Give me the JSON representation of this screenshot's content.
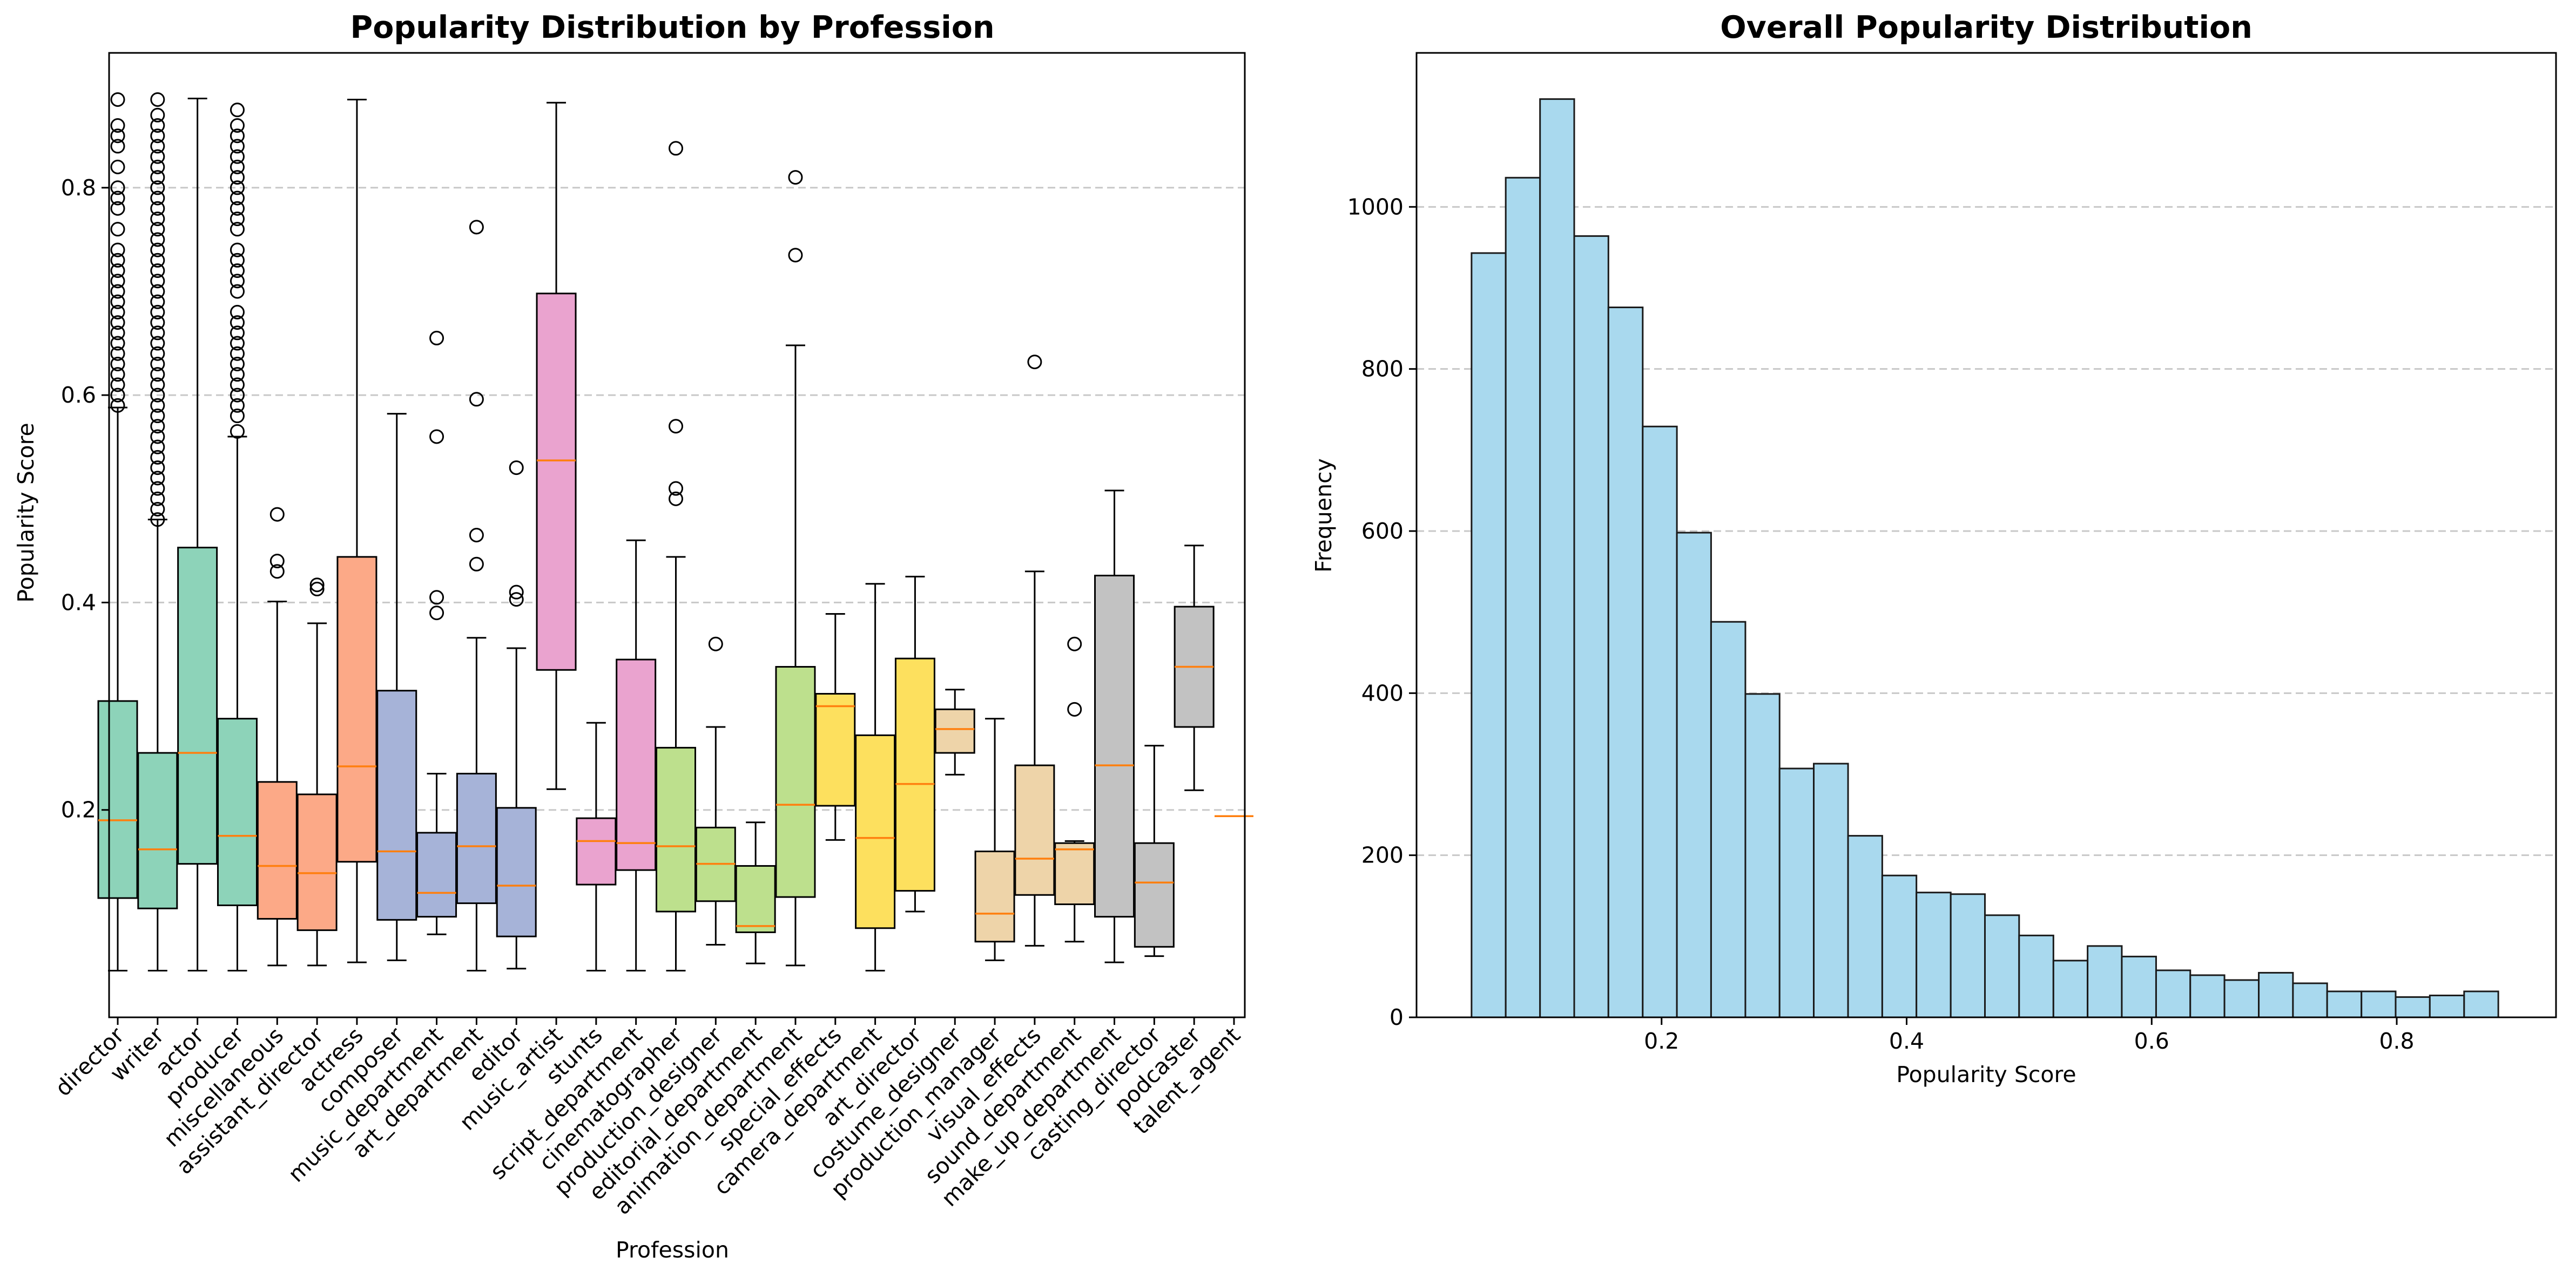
{
  "chart_data": [
    {
      "type": "box",
      "title": "Popularity Distribution by Profession",
      "xlabel": "Profession",
      "ylabel": "Popularity Score",
      "ylim": [
        0.0,
        0.93
      ],
      "yticks": [
        0.2,
        0.4,
        0.6,
        0.8
      ],
      "grid": "y-dashed",
      "palette_note": "Set2-like pastel colors cycling per profession",
      "categories": [
        "director",
        "writer",
        "actor",
        "producer",
        "miscellaneous",
        "assistant_director",
        "actress",
        "composer",
        "music_department",
        "art_department",
        "editor",
        "music_artist",
        "stunts",
        "script_department",
        "cinematographer",
        "production_designer",
        "editorial_department",
        "animation_department",
        "special_effects",
        "camera_department",
        "art_director",
        "costume_designer",
        "production_manager",
        "visual_effects",
        "sound_department",
        "make_up_department",
        "casting_director",
        "podcaster",
        "talent_agent"
      ],
      "boxes": [
        {
          "name": "director",
          "whislo": 0.045,
          "q1": 0.115,
          "med": 0.19,
          "q3": 0.305,
          "whishi": 0.588,
          "fliers": [
            0.59,
            0.6,
            0.61,
            0.62,
            0.63,
            0.64,
            0.65,
            0.66,
            0.67,
            0.68,
            0.69,
            0.7,
            0.71,
            0.72,
            0.73,
            0.74,
            0.76,
            0.78,
            0.79,
            0.8,
            0.82,
            0.84,
            0.85,
            0.86,
            0.885
          ],
          "color": "#8dd3b9"
        },
        {
          "name": "writer",
          "whislo": 0.045,
          "q1": 0.105,
          "med": 0.162,
          "q3": 0.255,
          "whishi": 0.48,
          "fliers": [
            0.48,
            0.49,
            0.5,
            0.51,
            0.52,
            0.53,
            0.54,
            0.55,
            0.56,
            0.57,
            0.58,
            0.59,
            0.6,
            0.61,
            0.62,
            0.63,
            0.64,
            0.65,
            0.66,
            0.67,
            0.68,
            0.69,
            0.7,
            0.71,
            0.72,
            0.73,
            0.74,
            0.75,
            0.76,
            0.77,
            0.78,
            0.79,
            0.8,
            0.81,
            0.82,
            0.83,
            0.84,
            0.85,
            0.86,
            0.87,
            0.885
          ],
          "color": "#8dd3b9"
        },
        {
          "name": "actor",
          "whislo": 0.045,
          "q1": 0.148,
          "med": 0.255,
          "q3": 0.453,
          "whishi": 0.886,
          "fliers": [],
          "color": "#8dd3b9"
        },
        {
          "name": "producer",
          "whislo": 0.045,
          "q1": 0.108,
          "med": 0.175,
          "q3": 0.288,
          "whishi": 0.56,
          "fliers": [
            0.565,
            0.58,
            0.59,
            0.6,
            0.61,
            0.62,
            0.63,
            0.64,
            0.65,
            0.66,
            0.67,
            0.68,
            0.7,
            0.71,
            0.72,
            0.73,
            0.74,
            0.76,
            0.77,
            0.78,
            0.79,
            0.8,
            0.81,
            0.82,
            0.83,
            0.84,
            0.85,
            0.86,
            0.875
          ],
          "color": "#8dd3b9"
        },
        {
          "name": "miscellaneous",
          "whislo": 0.05,
          "q1": 0.095,
          "med": 0.146,
          "q3": 0.227,
          "whishi": 0.401,
          "fliers": [
            0.43,
            0.44,
            0.485
          ],
          "color": "#fca987"
        },
        {
          "name": "assistant_director",
          "whislo": 0.05,
          "q1": 0.084,
          "med": 0.139,
          "q3": 0.215,
          "whishi": 0.38,
          "fliers": [
            0.413,
            0.417
          ],
          "color": "#fca987"
        },
        {
          "name": "actress",
          "whislo": 0.053,
          "q1": 0.15,
          "med": 0.242,
          "q3": 0.444,
          "whishi": 0.885,
          "fliers": [],
          "color": "#fca987"
        },
        {
          "name": "composer",
          "whislo": 0.055,
          "q1": 0.094,
          "med": 0.16,
          "q3": 0.315,
          "whishi": 0.582,
          "fliers": [],
          "color": "#a6b3d8"
        },
        {
          "name": "music_department",
          "whislo": 0.08,
          "q1": 0.097,
          "med": 0.12,
          "q3": 0.178,
          "whishi": 0.235,
          "fliers": [
            0.39,
            0.405,
            0.56,
            0.655
          ],
          "color": "#a6b3d8"
        },
        {
          "name": "art_department",
          "whislo": 0.045,
          "q1": 0.11,
          "med": 0.165,
          "q3": 0.235,
          "whishi": 0.366,
          "fliers": [
            0.437,
            0.465,
            0.596,
            0.762
          ],
          "color": "#a6b3d8"
        },
        {
          "name": "editor",
          "whislo": 0.047,
          "q1": 0.078,
          "med": 0.127,
          "q3": 0.202,
          "whishi": 0.356,
          "fliers": [
            0.403,
            0.41,
            0.53
          ],
          "color": "#a6b3d8"
        },
        {
          "name": "music_artist",
          "whislo": 0.22,
          "q1": 0.335,
          "med": 0.537,
          "q3": 0.698,
          "whishi": 0.882,
          "fliers": [],
          "color": "#eaa3cf"
        },
        {
          "name": "stunts",
          "whislo": 0.045,
          "q1": 0.128,
          "med": 0.17,
          "q3": 0.192,
          "whishi": 0.284,
          "fliers": [],
          "color": "#eaa3cf"
        },
        {
          "name": "script_department",
          "whislo": 0.045,
          "q1": 0.142,
          "med": 0.168,
          "q3": 0.345,
          "whishi": 0.46,
          "fliers": [],
          "color": "#eaa3cf"
        },
        {
          "name": "cinematographer",
          "whislo": 0.045,
          "q1": 0.102,
          "med": 0.165,
          "q3": 0.26,
          "whishi": 0.444,
          "fliers": [
            0.5,
            0.51,
            0.57,
            0.838
          ],
          "color": "#bde08d"
        },
        {
          "name": "production_designer",
          "whislo": 0.07,
          "q1": 0.112,
          "med": 0.148,
          "q3": 0.183,
          "whishi": 0.28,
          "fliers": [
            0.36
          ],
          "color": "#bde08d"
        },
        {
          "name": "editorial_department",
          "whislo": 0.052,
          "q1": 0.082,
          "med": 0.088,
          "q3": 0.146,
          "whishi": 0.188,
          "fliers": [],
          "color": "#bde08d"
        },
        {
          "name": "animation_department",
          "whislo": 0.05,
          "q1": 0.116,
          "med": 0.205,
          "q3": 0.338,
          "whishi": 0.648,
          "fliers": [
            0.735,
            0.81
          ],
          "color": "#bde08d"
        },
        {
          "name": "special_effects",
          "whislo": 0.171,
          "q1": 0.204,
          "med": 0.3,
          "q3": 0.312,
          "whishi": 0.389,
          "fliers": [],
          "color": "#fde05e"
        },
        {
          "name": "camera_department",
          "whislo": 0.045,
          "q1": 0.086,
          "med": 0.173,
          "q3": 0.272,
          "whishi": 0.418,
          "fliers": [],
          "color": "#fde05e"
        },
        {
          "name": "art_director",
          "whislo": 0.102,
          "q1": 0.122,
          "med": 0.225,
          "q3": 0.346,
          "whishi": 0.425,
          "fliers": [],
          "color": "#fde05e"
        },
        {
          "name": "costume_designer",
          "whislo": 0.234,
          "q1": 0.255,
          "med": 0.278,
          "q3": 0.297,
          "whishi": 0.316,
          "fliers": [],
          "color": "#eed4a9"
        },
        {
          "name": "production_manager",
          "whislo": 0.055,
          "q1": 0.073,
          "med": 0.1,
          "q3": 0.16,
          "whishi": 0.288,
          "fliers": [],
          "color": "#eed4a9"
        },
        {
          "name": "visual_effects",
          "whislo": 0.069,
          "q1": 0.118,
          "med": 0.153,
          "q3": 0.243,
          "whishi": 0.43,
          "fliers": [
            0.632
          ],
          "color": "#eed4a9"
        },
        {
          "name": "sound_department",
          "whislo": 0.073,
          "q1": 0.109,
          "med": 0.162,
          "q3": 0.168,
          "whishi": 0.17,
          "fliers": [
            0.297,
            0.36
          ],
          "color": "#eed4a9"
        },
        {
          "name": "make_up_department",
          "whislo": 0.053,
          "q1": 0.097,
          "med": 0.243,
          "q3": 0.426,
          "whishi": 0.508,
          "fliers": [],
          "color": "#c2c2c2"
        },
        {
          "name": "casting_director",
          "whislo": 0.059,
          "q1": 0.068,
          "med": 0.13,
          "q3": 0.168,
          "whishi": 0.262,
          "fliers": [],
          "color": "#c2c2c2"
        },
        {
          "name": "podcaster",
          "whislo": 0.219,
          "q1": 0.28,
          "med": 0.338,
          "q3": 0.396,
          "whishi": 0.455,
          "fliers": [],
          "color": "#c2c2c2"
        },
        {
          "name": "talent_agent",
          "whislo": 0.194,
          "q1": 0.194,
          "med": 0.194,
          "q3": 0.194,
          "whishi": 0.194,
          "fliers": [],
          "color": "#c2c2c2"
        }
      ]
    },
    {
      "type": "bar",
      "subtype": "histogram",
      "title": "Overall Popularity Distribution",
      "xlabel": "Popularity Score",
      "ylabel": "Frequency",
      "xlim": [
        0.0,
        0.93
      ],
      "ylim": [
        0,
        1190
      ],
      "xticks": [
        0.2,
        0.4,
        0.6,
        0.8
      ],
      "yticks": [
        0,
        200,
        400,
        600,
        800,
        1000
      ],
      "grid": "y-dashed",
      "bar_color": "#a9d9ee",
      "bin_edges": [
        0.0449,
        0.0728,
        0.1008,
        0.1287,
        0.1566,
        0.1846,
        0.2125,
        0.2404,
        0.2684,
        0.2963,
        0.3242,
        0.3522,
        0.3801,
        0.408,
        0.436,
        0.4639,
        0.4918,
        0.5198,
        0.5477,
        0.5756,
        0.6036,
        0.6315,
        0.6594,
        0.6874,
        0.7153,
        0.7432,
        0.7712,
        0.7991,
        0.827,
        0.855,
        0.8829
      ],
      "values": [
        943,
        1036,
        1133,
        964,
        876,
        729,
        598,
        488,
        399,
        307,
        313,
        224,
        175,
        154,
        152,
        126,
        101,
        70,
        88,
        75,
        58,
        52,
        46,
        55,
        42,
        32,
        32,
        25,
        27,
        32
      ]
    }
  ]
}
